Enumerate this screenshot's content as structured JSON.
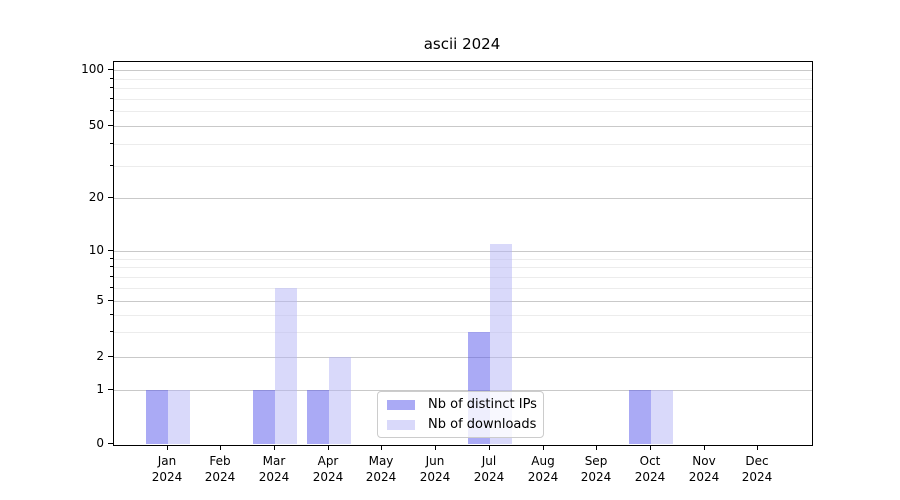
{
  "title": "ascii 2024",
  "legend": {
    "items": [
      {
        "label": "Nb of distinct IPs",
        "color": "rgba(85,85,235,0.5)"
      },
      {
        "label": "Nb of downloads",
        "color": "rgba(180,180,246,0.5)"
      }
    ]
  },
  "axis": {
    "year": "2024",
    "months": [
      "Jan",
      "Feb",
      "Mar",
      "Apr",
      "May",
      "Jun",
      "Jul",
      "Aug",
      "Sep",
      "Oct",
      "Nov",
      "Dec"
    ],
    "ytick_labels": [
      "0",
      "1",
      "2",
      "5",
      "10",
      "20",
      "50",
      "100"
    ]
  },
  "chart_data": {
    "type": "bar",
    "title": "ascii 2024",
    "categories": [
      "Jan 2024",
      "Feb 2024",
      "Mar 2024",
      "Apr 2024",
      "May 2024",
      "Jun 2024",
      "Jul 2024",
      "Aug 2024",
      "Sep 2024",
      "Oct 2024",
      "Nov 2024",
      "Dec 2024"
    ],
    "series": [
      {
        "name": "Nb of distinct IPs",
        "values": [
          1,
          0,
          1,
          1,
          0,
          0,
          3,
          0,
          0,
          1,
          0,
          0
        ],
        "color_on_white": "#aaaaf5"
      },
      {
        "name": "Nb of downloads",
        "values": [
          1,
          0,
          6,
          2,
          0,
          0,
          11,
          0,
          0,
          1,
          0,
          0
        ],
        "color_on_white": "#d9d9fa"
      }
    ],
    "xlabel": "",
    "ylabel": "",
    "yscale": "log-like (0,1,2,5,10,20,50,100)",
    "yticks_major": [
      0,
      1,
      2,
      5,
      10,
      20,
      50,
      100
    ],
    "yticks_minor": [
      3,
      4,
      6,
      7,
      8,
      9,
      30,
      40,
      60,
      70,
      80,
      90
    ],
    "ylim": [
      0,
      110
    ],
    "grid": true,
    "legend_position": "lower center",
    "bar_colors": {
      "distinct_ips": "rgba(85,85,235,0.5)",
      "downloads": "rgba(180,180,246,0.5)"
    }
  }
}
